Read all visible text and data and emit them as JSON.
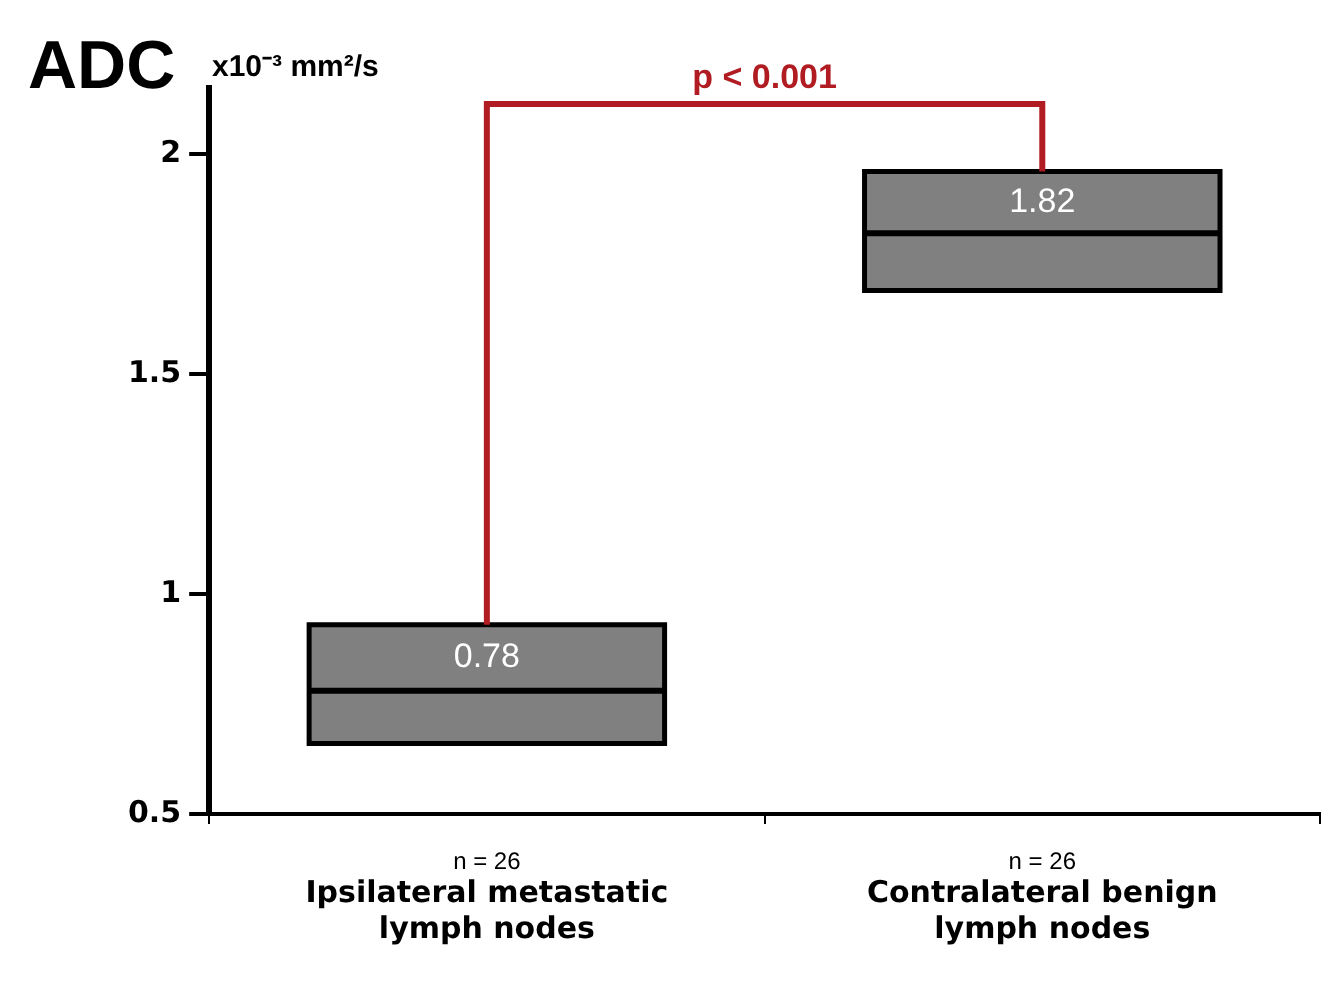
{
  "chart_data": {
    "type": "box",
    "title": "ADC",
    "ylabel": "x10⁻³ mm²/s",
    "categories": [
      "Ipsilateral metastatic lymph nodes",
      "Contralateral benign lymph nodes"
    ],
    "boxes": [
      {
        "low": 0.66,
        "q1": 0.66,
        "median": 0.78,
        "q3": 0.93,
        "high": 0.93
      },
      {
        "low": 1.69,
        "q1": 1.69,
        "median": 1.82,
        "q3": 1.96,
        "high": 1.96
      }
    ],
    "color": "#808080",
    "value_labels": [
      "0.78",
      "1.82"
    ],
    "ylim": [
      0.5,
      2.15
    ],
    "yticks": [
      0.5,
      1,
      1.5,
      2
    ],
    "grid": false,
    "legend": false,
    "annotations": [
      "n = 26",
      "n = 26",
      "p < 0.001"
    ]
  }
}
